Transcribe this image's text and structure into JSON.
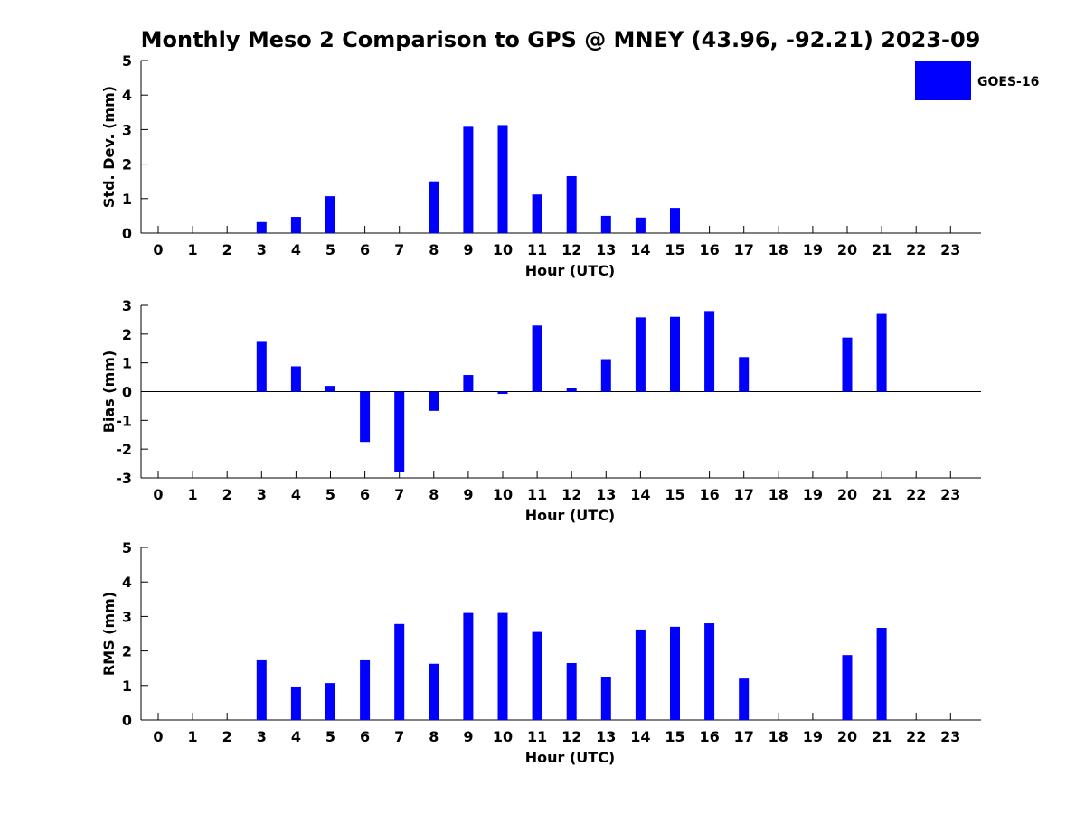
{
  "title": "Monthly Meso 2 Comparison to GPS @ MNEY (43.96, -92.21) 2023-09",
  "chart_data": [
    {
      "type": "bar",
      "ylabel": "Std. Dev. (mm)",
      "xlabel": "Hour (UTC)",
      "ylim": [
        0,
        5
      ],
      "yticks": [
        0,
        1,
        2,
        3,
        4,
        5
      ],
      "x": [
        0,
        1,
        2,
        3,
        4,
        5,
        6,
        7,
        8,
        9,
        10,
        11,
        12,
        13,
        14,
        15,
        16,
        17,
        18,
        19,
        20,
        21,
        22,
        23
      ],
      "series": [
        {
          "name": "GOES-16",
          "color": "#0000ff",
          "values": [
            null,
            null,
            null,
            0.32,
            0.47,
            1.07,
            null,
            null,
            1.5,
            3.08,
            3.13,
            1.12,
            1.65,
            0.5,
            0.45,
            0.73,
            null,
            null,
            null,
            null,
            null,
            null,
            null,
            null
          ]
        }
      ],
      "legend": {
        "position": "top-right",
        "entries": [
          "GOES-16"
        ]
      }
    },
    {
      "type": "bar",
      "ylabel": "Bias (mm)",
      "xlabel": "Hour (UTC)",
      "ylim": [
        -3,
        3
      ],
      "yticks": [
        -3,
        -2,
        -1,
        0,
        1,
        2,
        3
      ],
      "x": [
        0,
        1,
        2,
        3,
        4,
        5,
        6,
        7,
        8,
        9,
        10,
        11,
        12,
        13,
        14,
        15,
        16,
        17,
        18,
        19,
        20,
        21,
        22,
        23
      ],
      "series": [
        {
          "name": "GOES-16",
          "color": "#0000ff",
          "values": [
            null,
            null,
            null,
            1.73,
            0.88,
            0.2,
            -1.75,
            -2.78,
            -0.67,
            0.58,
            -0.08,
            2.3,
            0.11,
            1.13,
            2.58,
            2.6,
            2.8,
            1.2,
            null,
            null,
            1.88,
            2.7,
            null,
            null
          ]
        }
      ],
      "zero_line": true
    },
    {
      "type": "bar",
      "ylabel": "RMS (mm)",
      "xlabel": "Hour (UTC)",
      "ylim": [
        0,
        5
      ],
      "yticks": [
        0,
        1,
        2,
        3,
        4,
        5
      ],
      "x": [
        0,
        1,
        2,
        3,
        4,
        5,
        6,
        7,
        8,
        9,
        10,
        11,
        12,
        13,
        14,
        15,
        16,
        17,
        18,
        19,
        20,
        21,
        22,
        23
      ],
      "series": [
        {
          "name": "GOES-16",
          "color": "#0000ff",
          "values": [
            null,
            null,
            null,
            1.73,
            0.97,
            1.07,
            1.73,
            2.78,
            1.63,
            3.1,
            3.1,
            2.55,
            1.65,
            1.23,
            2.62,
            2.7,
            2.8,
            1.2,
            null,
            null,
            1.88,
            2.67,
            null,
            null
          ]
        }
      ]
    }
  ]
}
